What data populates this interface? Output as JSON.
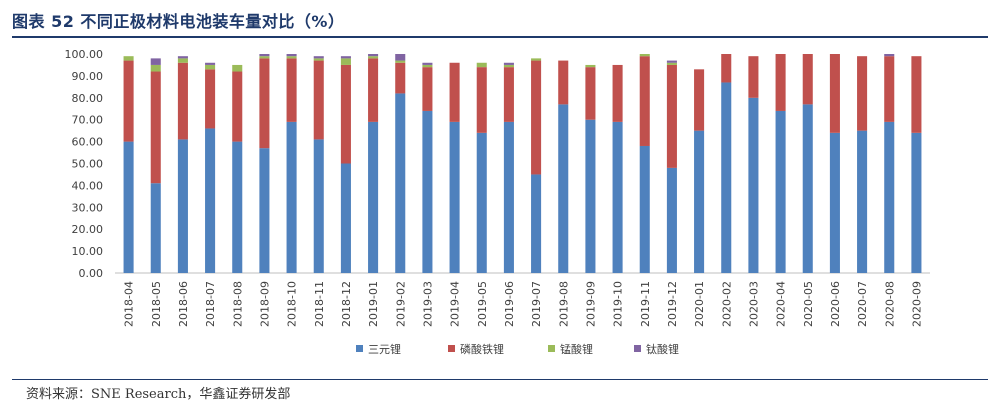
{
  "header": {
    "title": "图表 52 不同正极材料电池装车量对比（%）"
  },
  "footer": {
    "source": "资料来源：SNE Research，华鑫证券研发部"
  },
  "chart_data": {
    "type": "bar",
    "stacked": true,
    "title": "图表 52 不同正极材料电池装车量对比（%）",
    "xlabel": "",
    "ylabel": "",
    "ylim": [
      0,
      100
    ],
    "yticks": [
      "0.00",
      "10.00",
      "20.00",
      "30.00",
      "40.00",
      "50.00",
      "60.00",
      "70.00",
      "80.00",
      "90.00",
      "100.00"
    ],
    "legend_position": "bottom",
    "categories": [
      "2018-04",
      "2018-05",
      "2018-06",
      "2018-07",
      "2018-08",
      "2018-09",
      "2018-10",
      "2018-11",
      "2018-12",
      "2019-01",
      "2019-02",
      "2019-03",
      "2019-04",
      "2019-05",
      "2019-06",
      "2019-07",
      "2019-08",
      "2019-09",
      "2019-10",
      "2019-11",
      "2019-12",
      "2020-01",
      "2020-02",
      "2020-03",
      "2020-04",
      "2020-05",
      "2020-06",
      "2020-07",
      "2020-08",
      "2020-09"
    ],
    "series": [
      {
        "name": "三元锂",
        "color": "#4f81bd",
        "values": [
          60,
          41,
          61,
          66,
          60,
          57,
          69,
          61,
          50,
          69,
          82,
          74,
          69,
          64,
          69,
          45,
          77,
          70,
          69,
          58,
          48,
          65,
          87,
          80,
          74,
          77,
          64,
          65,
          69,
          64
        ]
      },
      {
        "name": "磷酸铁锂",
        "color": "#c0504d",
        "values": [
          37,
          51,
          35,
          27,
          32,
          41,
          29,
          36,
          45,
          29,
          14,
          20,
          27,
          30,
          25,
          52,
          20,
          24,
          26,
          41,
          47,
          28,
          13,
          19,
          26,
          23,
          36,
          34,
          30,
          35
        ]
      },
      {
        "name": "锰酸锂",
        "color": "#9bbb59",
        "values": [
          2,
          3,
          2,
          2,
          3,
          1,
          1,
          1,
          3,
          1,
          1,
          1,
          0,
          2,
          1,
          1,
          0,
          1,
          0,
          1,
          1,
          0,
          0,
          0,
          0,
          0,
          0,
          0,
          0,
          0
        ]
      },
      {
        "name": "钛酸锂",
        "color": "#8064a2",
        "values": [
          0,
          3,
          1,
          1,
          0,
          1,
          1,
          1,
          1,
          1,
          3,
          1,
          0,
          0,
          1,
          0,
          0,
          0,
          0,
          0,
          1,
          0,
          0,
          0,
          0,
          0,
          0,
          0,
          1,
          0
        ]
      }
    ]
  }
}
